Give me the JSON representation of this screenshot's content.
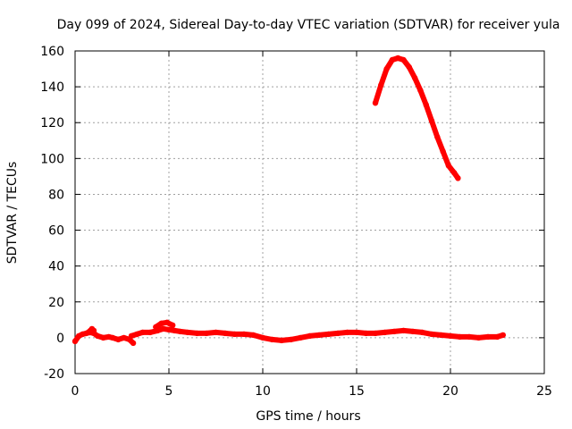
{
  "chart_data": {
    "type": "scatter",
    "title": "Day 099 of 2024, Sidereal Day-to-day VTEC variation (SDTVAR) for receiver yula",
    "xlabel": "GPS time / hours",
    "ylabel": "SDTVAR / TECUs",
    "xlim": [
      0,
      25
    ],
    "ylim": [
      -20,
      160
    ],
    "xticks": [
      0,
      5,
      10,
      15,
      20,
      25
    ],
    "yticks": [
      -20,
      0,
      20,
      40,
      60,
      80,
      100,
      120,
      140,
      160
    ],
    "grid": true,
    "series_color": "#ff0000",
    "series": [
      {
        "x": [
          0.0,
          0.2,
          0.4,
          0.6,
          0.8,
          1.0,
          1.2,
          1.5,
          1.8,
          2.0,
          2.3,
          2.6,
          2.9,
          3.1
        ],
        "y": [
          -2,
          1,
          2,
          2.5,
          3,
          2.5,
          1,
          0,
          0.5,
          0,
          -1,
          0,
          -1,
          -3
        ]
      },
      {
        "x": [
          3.0,
          3.3,
          3.6,
          4.0,
          4.4,
          4.7,
          5.0,
          5.3,
          5.6,
          6.0,
          6.5,
          7.0,
          7.5,
          8.0,
          8.5,
          9.0,
          9.5,
          10.0,
          10.5,
          11.0,
          11.5,
          12.0,
          12.5,
          13.0,
          13.5,
          14.0,
          14.5,
          15.0,
          15.5,
          16.0,
          16.5,
          17.0,
          17.5,
          18.0,
          18.5,
          19.0,
          19.5,
          20.0,
          20.5,
          21.0,
          21.5,
          22.0,
          22.5,
          22.8
        ],
        "y": [
          1,
          2,
          3,
          3,
          4,
          5,
          4.5,
          4,
          3.5,
          3,
          2.5,
          2.5,
          3,
          2.5,
          2,
          2,
          1.5,
          0,
          -1,
          -1.5,
          -1,
          0,
          1,
          1.5,
          2,
          2.5,
          3,
          3,
          2.5,
          2.5,
          3,
          3.5,
          4,
          3.5,
          3,
          2,
          1.5,
          1,
          0.5,
          0.5,
          0,
          0.5,
          0.5,
          1.5
        ]
      },
      {
        "x": [
          0.7,
          0.9,
          1.0
        ],
        "y": [
          3,
          5,
          4
        ]
      },
      {
        "x": [
          4.3,
          4.6,
          4.9,
          5.2
        ],
        "y": [
          6,
          8,
          8.5,
          7
        ]
      },
      {
        "x": [
          16.0,
          16.3,
          16.6,
          16.9,
          17.2,
          17.5,
          17.8,
          18.1,
          18.4,
          18.7,
          19.0,
          19.3,
          19.6,
          19.9,
          20.2,
          20.4
        ],
        "y": [
          131,
          141,
          150,
          155,
          156,
          155,
          151,
          145,
          138,
          130,
          121,
          112,
          104,
          96,
          92,
          89
        ]
      }
    ]
  }
}
